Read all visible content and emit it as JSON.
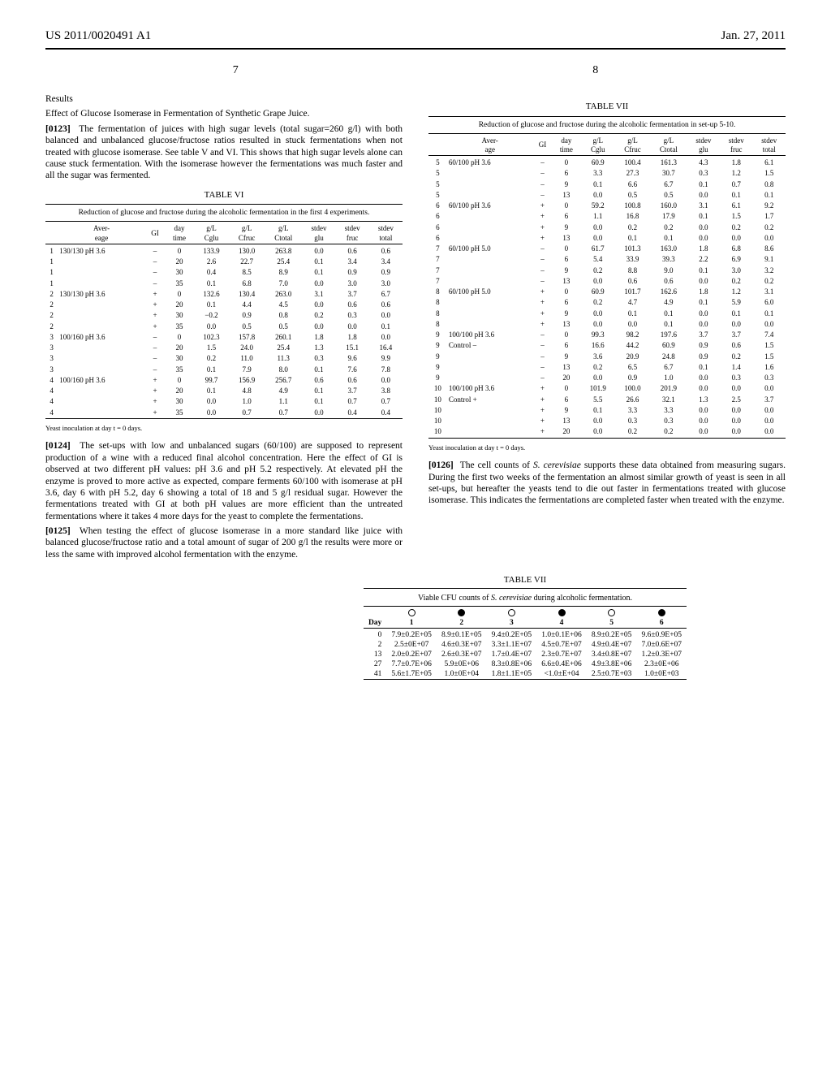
{
  "header": {
    "left": "US 2011/0020491 A1",
    "right": "Jan. 27, 2011",
    "page_top": "7",
    "page_bottom": "8"
  },
  "leftCol": {
    "results": "Results",
    "effectTitle": "Effect of Glucose Isomerase in Fermentation of Synthetic Grape Juice.",
    "p0123_num": "[0123]",
    "p0123": "The fermentation of juices with high sugar levels (total sugar=260 g/l) with both balanced and unbalanced glucose/fructose ratios resulted in stuck fermentations when not treated with glucose isomerase. See table V and VI. This shows that high sugar levels alone can cause stuck fermentation. With the isomerase however the fermentations was much faster and all the sugar was fermented.",
    "tableVI": {
      "caption": "TABLE VI",
      "subcaption": "Reduction of glucose and fructose during the alcoholic fermentation in the first 4 experiments.",
      "headers": [
        "",
        "Aver-\neage",
        "GI",
        "day\ntime",
        "g/L\nCglu",
        "g/L\nCfruc",
        "g/L\nCtotal",
        "stdev\nglu",
        "stdev\nfruc",
        "stdev\ntotal"
      ],
      "rows": [
        [
          "1",
          "130/130 pH 3.6",
          "–",
          "0",
          "133.9",
          "130.0",
          "263.8",
          "0.0",
          "0.6",
          "0.6"
        ],
        [
          "1",
          "",
          "–",
          "20",
          "2.6",
          "22.7",
          "25.4",
          "0.1",
          "3.4",
          "3.4"
        ],
        [
          "1",
          "",
          "–",
          "30",
          "0.4",
          "8.5",
          "8.9",
          "0.1",
          "0.9",
          "0.9"
        ],
        [
          "1",
          "",
          "–",
          "35",
          "0.1",
          "6.8",
          "7.0",
          "0.0",
          "3.0",
          "3.0"
        ],
        [
          "2",
          "130/130 pH 3.6",
          "+",
          "0",
          "132.6",
          "130.4",
          "263.0",
          "3.1",
          "3.7",
          "6.7"
        ],
        [
          "2",
          "",
          "+",
          "20",
          "0.1",
          "4.4",
          "4.5",
          "0.0",
          "0.6",
          "0.6"
        ],
        [
          "2",
          "",
          "+",
          "30",
          "−0.2",
          "0.9",
          "0.8",
          "0.2",
          "0.3",
          "0.0"
        ],
        [
          "2",
          "",
          "+",
          "35",
          "0.0",
          "0.5",
          "0.5",
          "0.0",
          "0.0",
          "0.1"
        ],
        [
          "3",
          "100/160 pH 3.6",
          "–",
          "0",
          "102.3",
          "157.8",
          "260.1",
          "1.8",
          "1.8",
          "0.0"
        ],
        [
          "3",
          "",
          "–",
          "20",
          "1.5",
          "24.0",
          "25.4",
          "1.3",
          "15.1",
          "16.4"
        ],
        [
          "3",
          "",
          "–",
          "30",
          "0.2",
          "11.0",
          "11.3",
          "0.3",
          "9.6",
          "9.9"
        ],
        [
          "3",
          "",
          "–",
          "35",
          "0.1",
          "7.9",
          "8.0",
          "0.1",
          "7.6",
          "7.8"
        ],
        [
          "4",
          "100/160 pH 3.6",
          "+",
          "0",
          "99.7",
          "156.9",
          "256.7",
          "0.6",
          "0.6",
          "0.0"
        ],
        [
          "4",
          "",
          "+",
          "20",
          "0.1",
          "4.8",
          "4.9",
          "0.1",
          "3.7",
          "3.8"
        ],
        [
          "4",
          "",
          "+",
          "30",
          "0.0",
          "1.0",
          "1.1",
          "0.1",
          "0.7",
          "0.7"
        ],
        [
          "4",
          "",
          "+",
          "35",
          "0.0",
          "0.7",
          "0.7",
          "0.0",
          "0.4",
          "0.4"
        ]
      ],
      "footnote": "Yeast inoculation at day t = 0 days."
    },
    "p0124_num": "[0124]",
    "p0124": "The set-ups with low and unbalanced sugars (60/100) are supposed to represent production of a wine with a reduced final alcohol concentration. Here the effect of GI is observed at two different pH values: pH 3.6 and pH 5.2 respectively. At elevated pH the enzyme is proved to more active as expected, compare ferments 60/100 with isomerase at pH 3.6, day 6 with pH 5.2, day 6 showing a total of 18 and 5 g/l residual sugar. However the fermentations treated with GI at both pH values are more efficient than the untreated fermentations where it takes 4 more days for the yeast to complete the fermentations.",
    "p0125_num": "[0125]",
    "p0125": "When testing the effect of glucose isomerase in a more standard like juice with balanced glucose/fructose ratio and a total amount of sugar of 200 g/l the results were more or less the same with improved alcohol fermentation with the enzyme."
  },
  "rightCol": {
    "tableVII": {
      "caption": "TABLE VII",
      "subcaption": "Reduction of glucose and fructose during the alcoholic fermentation in set-up 5-10.",
      "headers": [
        "",
        "Aver-\nage",
        "GI",
        "day\ntime",
        "g/L\nCglu",
        "g/L\nCfruc",
        "g/L\nCtotal",
        "stdev\nglu",
        "stdev\nfruc",
        "stdev\ntotal"
      ],
      "rows": [
        [
          "5",
          "60/100 pH 3.6",
          "–",
          "0",
          "60.9",
          "100.4",
          "161.3",
          "4.3",
          "1.8",
          "6.1"
        ],
        [
          "5",
          "",
          "–",
          "6",
          "3.3",
          "27.3",
          "30.7",
          "0.3",
          "1.2",
          "1.5"
        ],
        [
          "5",
          "",
          "–",
          "9",
          "0.1",
          "6.6",
          "6.7",
          "0.1",
          "0.7",
          "0.8"
        ],
        [
          "5",
          "",
          "–",
          "13",
          "0.0",
          "0.5",
          "0.5",
          "0.0",
          "0.1",
          "0.1"
        ],
        [
          "6",
          "60/100 pH 3.6",
          "+",
          "0",
          "59.2",
          "100.8",
          "160.0",
          "3.1",
          "6.1",
          "9.2"
        ],
        [
          "6",
          "",
          "+",
          "6",
          "1.1",
          "16.8",
          "17.9",
          "0.1",
          "1.5",
          "1.7"
        ],
        [
          "6",
          "",
          "+",
          "9",
          "0.0",
          "0.2",
          "0.2",
          "0.0",
          "0.2",
          "0.2"
        ],
        [
          "6",
          "",
          "+",
          "13",
          "0.0",
          "0.1",
          "0.1",
          "0.0",
          "0.0",
          "0.0"
        ],
        [
          "7",
          "60/100 pH 5.0",
          "–",
          "0",
          "61.7",
          "101.3",
          "163.0",
          "1.8",
          "6.8",
          "8.6"
        ],
        [
          "7",
          "",
          "–",
          "6",
          "5.4",
          "33.9",
          "39.3",
          "2.2",
          "6.9",
          "9.1"
        ],
        [
          "7",
          "",
          "–",
          "9",
          "0.2",
          "8.8",
          "9.0",
          "0.1",
          "3.0",
          "3.2"
        ],
        [
          "7",
          "",
          "–",
          "13",
          "0.0",
          "0.6",
          "0.6",
          "0.0",
          "0.2",
          "0.2"
        ],
        [
          "8",
          "60/100 pH 5.0",
          "+",
          "0",
          "60.9",
          "101.7",
          "162.6",
          "1.8",
          "1.2",
          "3.1"
        ],
        [
          "8",
          "",
          "+",
          "6",
          "0.2",
          "4.7",
          "4.9",
          "0.1",
          "5.9",
          "6.0"
        ],
        [
          "8",
          "",
          "+",
          "9",
          "0.0",
          "0.1",
          "0.1",
          "0.0",
          "0.1",
          "0.1"
        ],
        [
          "8",
          "",
          "+",
          "13",
          "0.0",
          "0.0",
          "0.1",
          "0.0",
          "0.0",
          "0.0"
        ],
        [
          "9",
          "100/100 pH 3.6",
          "–",
          "0",
          "99.3",
          "98.2",
          "197.6",
          "3.7",
          "3.7",
          "7.4"
        ],
        [
          "9",
          "Control –",
          "–",
          "6",
          "16.6",
          "44.2",
          "60.9",
          "0.9",
          "0.6",
          "1.5"
        ],
        [
          "9",
          "",
          "–",
          "9",
          "3.6",
          "20.9",
          "24.8",
          "0.9",
          "0.2",
          "1.5"
        ],
        [
          "9",
          "",
          "–",
          "13",
          "0.2",
          "6.5",
          "6.7",
          "0.1",
          "1.4",
          "1.6"
        ],
        [
          "9",
          "",
          "–",
          "20",
          "0.0",
          "0.9",
          "1.0",
          "0.0",
          "0.3",
          "0.3"
        ],
        [
          "10",
          "100/100 pH 3.6",
          "+",
          "0",
          "101.9",
          "100.0",
          "201.9",
          "0.0",
          "0.0",
          "0.0"
        ],
        [
          "10",
          "Control +",
          "+",
          "6",
          "5.5",
          "26.6",
          "32.1",
          "1.3",
          "2.5",
          "3.7"
        ],
        [
          "10",
          "",
          "+",
          "9",
          "0.1",
          "3.3",
          "3.3",
          "0.0",
          "0.0",
          "0.0"
        ],
        [
          "10",
          "",
          "+",
          "13",
          "0.0",
          "0.3",
          "0.3",
          "0.0",
          "0.0",
          "0.0"
        ],
        [
          "10",
          "",
          "+",
          "20",
          "0.0",
          "0.2",
          "0.2",
          "0.0",
          "0.0",
          "0.0"
        ]
      ],
      "footnote": "Yeast inoculation at day t = 0 days."
    },
    "p0126_num": "[0126]",
    "p0126a": "The cell counts of ",
    "p0126_ital": "S. cerevisiae",
    "p0126b": " supports these data obtained from measuring sugars. During the first two weeks of the fermentation an almost similar growth of yeast is seen in all set-ups, but hereafter the yeasts tend to die out faster in fermentations treated with glucose isomerase. This indicates the fermentations are completed faster when treated with the enzyme."
  },
  "wideTable": {
    "caption": "TABLE VII",
    "subcaption_a": "Viable CFU counts of ",
    "subcaption_ital": "S. cerevisiae",
    "subcaption_b": " during alcoholic fermentation.",
    "col_labels": [
      "Day",
      "1",
      "2",
      "3",
      "4",
      "5",
      "6"
    ],
    "dot_fill": [
      false,
      true,
      false,
      true,
      false,
      true
    ],
    "rows": [
      [
        "0",
        "7.9±0.2E+05",
        "8.9±0.1E+05",
        "9.4±0.2E+05",
        "1.0±0.1E+06",
        "8.9±0.2E+05",
        "9.6±0.9E+05"
      ],
      [
        "2",
        "2.5±0E+07",
        "4.6±0.3E+07",
        "3.3±1.1E+07",
        "4.5±0.7E+07",
        "4.9±0.4E+07",
        "7.0±0.6E+07"
      ],
      [
        "13",
        "2.0±0.2E+07",
        "2.6±0.3E+07",
        "1.7±0.4E+07",
        "2.3±0.7E+07",
        "3.4±0.8E+07",
        "1.2±0.3E+07"
      ],
      [
        "27",
        "7.7±0.7E+06",
        "5.9±0E+06",
        "8.3±0.8E+06",
        "6.6±0.4E+06",
        "4.9±3.8E+06",
        "2.3±0E+06"
      ],
      [
        "41",
        "5.6±1.7E+05",
        "1.0±0E+04",
        "1.8±1.1E+05",
        "<1.0±E+04",
        "2.5±0.7E+03",
        "1.0±0E+03"
      ]
    ]
  }
}
